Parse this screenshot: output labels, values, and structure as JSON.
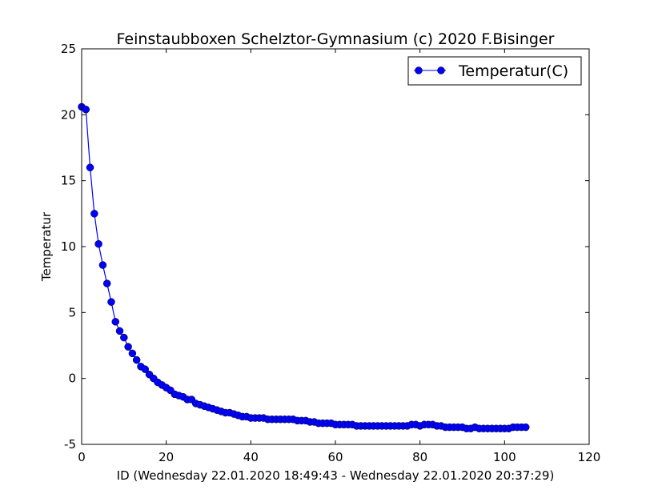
{
  "chart_data": {
    "type": "line",
    "title": "Feinstaubboxen Schelztor-Gymnasium (c) 2020 F.Bisinger",
    "xlabel": "ID (Wednesday 22.01.2020 18:49:43 - Wednesday 22.01.2020 20:37:29)",
    "ylabel": "Temperatur",
    "xlim": [
      0,
      120
    ],
    "ylim": [
      -5,
      25
    ],
    "xticks": [
      0,
      20,
      40,
      60,
      80,
      100,
      120
    ],
    "yticks": [
      -5,
      0,
      5,
      10,
      15,
      20,
      25
    ],
    "grid": false,
    "legend_position": "top-right",
    "series": [
      {
        "name": "Temperatur(C)",
        "color": "#0000ff",
        "marker": "circle",
        "x": [
          0,
          1,
          2,
          3,
          4,
          5,
          6,
          7,
          8,
          9,
          10,
          11,
          12,
          13,
          14,
          15,
          16,
          17,
          18,
          19,
          20,
          21,
          22,
          23,
          24,
          25,
          26,
          27,
          28,
          29,
          30,
          31,
          32,
          33,
          34,
          35,
          36,
          37,
          38,
          39,
          40,
          41,
          42,
          43,
          44,
          45,
          46,
          47,
          48,
          49,
          50,
          51,
          52,
          53,
          54,
          55,
          56,
          57,
          58,
          59,
          60,
          61,
          62,
          63,
          64,
          65,
          66,
          67,
          68,
          69,
          70,
          71,
          72,
          73,
          74,
          75,
          76,
          77,
          78,
          79,
          80,
          81,
          82,
          83,
          84,
          85,
          86,
          87,
          88,
          89,
          90,
          91,
          92,
          93,
          94,
          95,
          96,
          97,
          98,
          99,
          100,
          101,
          102,
          103,
          104,
          105
        ],
        "y": [
          20.6,
          20.4,
          16.0,
          12.5,
          10.2,
          8.6,
          7.2,
          5.8,
          4.3,
          3.6,
          3.1,
          2.4,
          1.9,
          1.4,
          0.9,
          0.7,
          0.3,
          0.0,
          -0.3,
          -0.5,
          -0.7,
          -0.9,
          -1.2,
          -1.3,
          -1.4,
          -1.6,
          -1.6,
          -1.9,
          -2.0,
          -2.1,
          -2.2,
          -2.3,
          -2.4,
          -2.5,
          -2.6,
          -2.6,
          -2.7,
          -2.8,
          -2.9,
          -2.9,
          -3.0,
          -3.0,
          -3.0,
          -3.0,
          -3.1,
          -3.1,
          -3.1,
          -3.1,
          -3.1,
          -3.1,
          -3.1,
          -3.2,
          -3.2,
          -3.2,
          -3.3,
          -3.3,
          -3.4,
          -3.4,
          -3.4,
          -3.4,
          -3.5,
          -3.5,
          -3.5,
          -3.5,
          -3.5,
          -3.6,
          -3.6,
          -3.6,
          -3.6,
          -3.6,
          -3.6,
          -3.6,
          -3.6,
          -3.6,
          -3.6,
          -3.6,
          -3.6,
          -3.6,
          -3.5,
          -3.5,
          -3.6,
          -3.5,
          -3.5,
          -3.5,
          -3.6,
          -3.6,
          -3.7,
          -3.7,
          -3.7,
          -3.7,
          -3.7,
          -3.8,
          -3.8,
          -3.7,
          -3.8,
          -3.8,
          -3.8,
          -3.8,
          -3.8,
          -3.8,
          -3.8,
          -3.8,
          -3.7,
          -3.7,
          -3.7,
          -3.7
        ]
      }
    ]
  }
}
